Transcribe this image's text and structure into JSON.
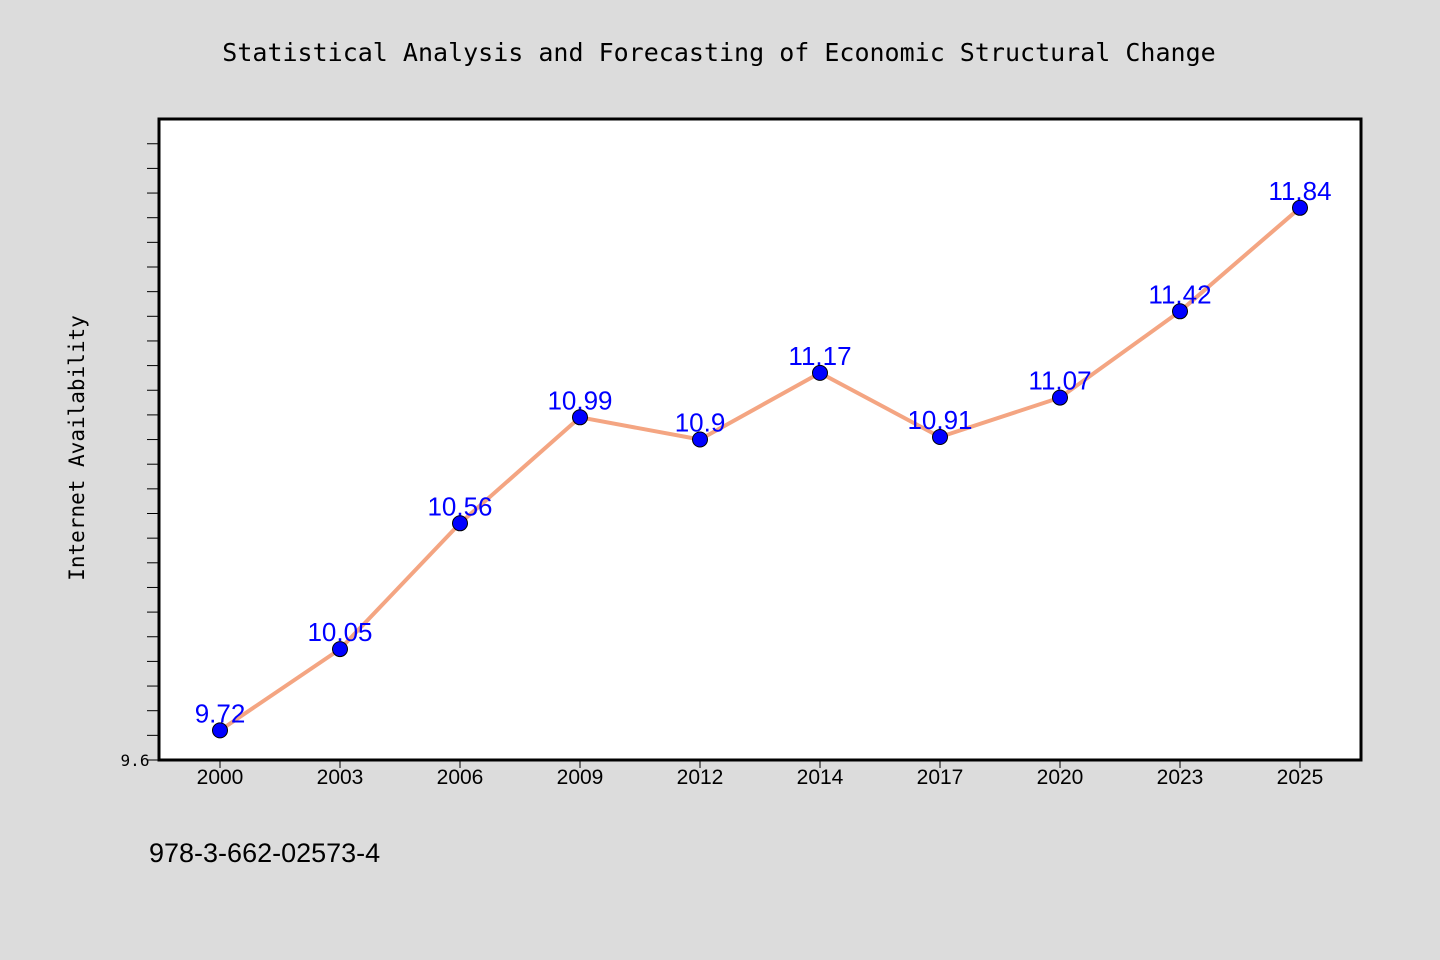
{
  "chart_data": {
    "type": "line",
    "title": "Statistical Analysis and Forecasting of Economic Structural Change",
    "xlabel": "",
    "ylabel": "Internet Availability",
    "categories": [
      "2000",
      "2003",
      "2006",
      "2009",
      "2012",
      "2014",
      "2017",
      "2020",
      "2023",
      "2025"
    ],
    "series": [
      {
        "values": [
          9.72,
          10.05,
          10.56,
          10.99,
          10.9,
          11.17,
          10.91,
          11.07,
          11.42,
          11.84
        ],
        "labels": [
          "9.72",
          "10.05",
          "10.56",
          "10.99",
          "10.9",
          "11.17",
          "10.91",
          "11.07",
          "11.42",
          "11.84"
        ],
        "line_color": "#f4a582",
        "marker_color": "#0000ff"
      }
    ],
    "ylim": [
      9.6,
      12.2
    ],
    "y_tick_labels": [
      "9.6"
    ],
    "grid": false
  },
  "footer": {
    "code": "978-3-662-02573-4"
  },
  "colors": {
    "background": "#dcdcdc",
    "plot_background": "#ffffff",
    "data_label": "#0000ff"
  }
}
